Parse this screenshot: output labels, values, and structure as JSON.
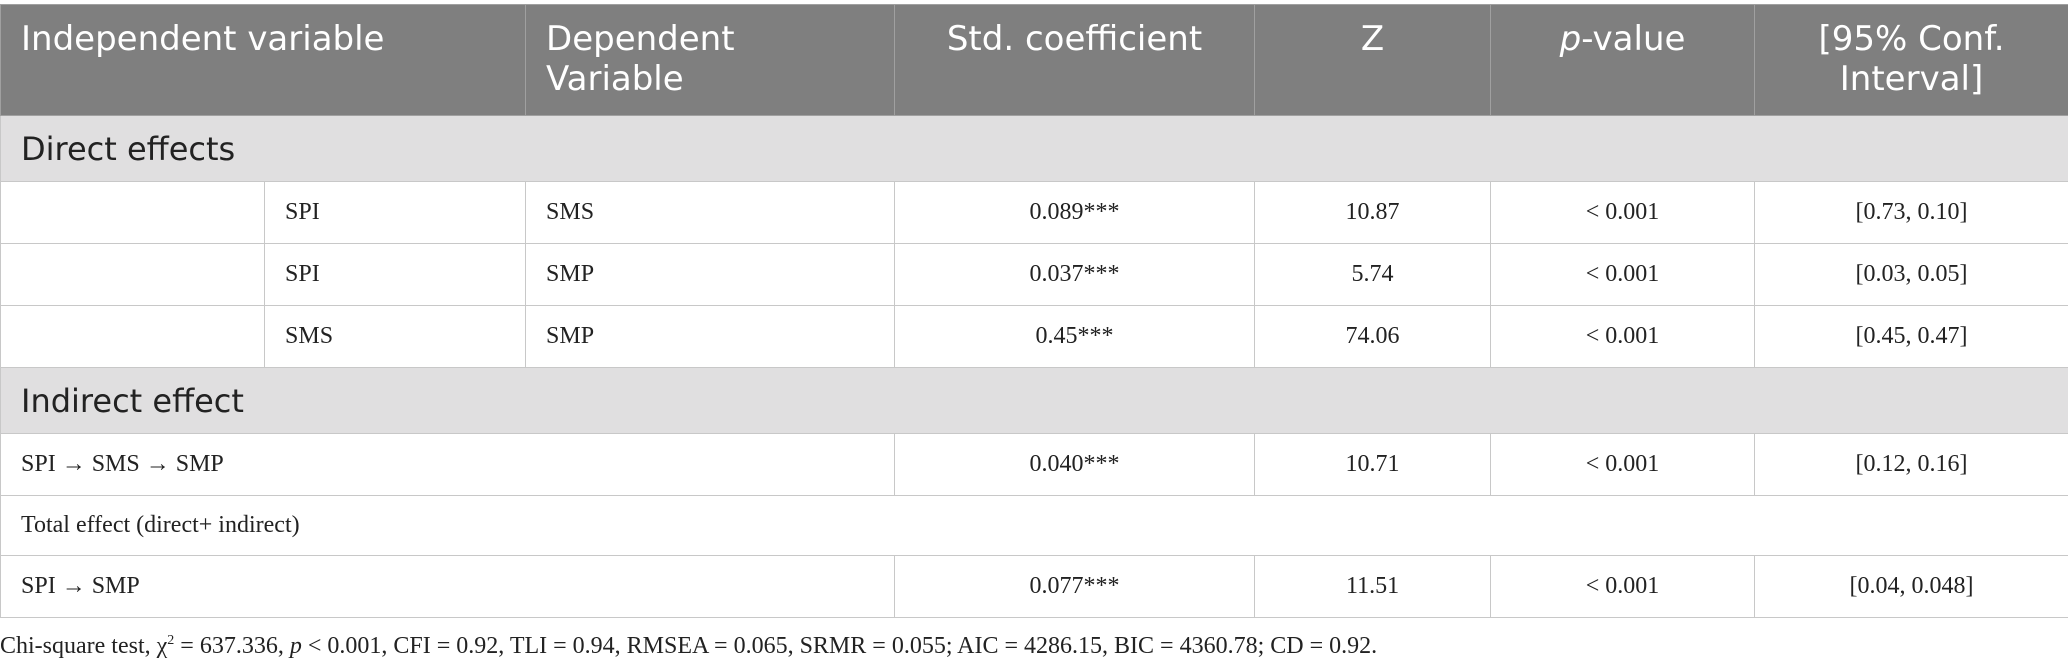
{
  "table": {
    "header": [
      "Independent variable",
      "Dependent Variable",
      "Std. coefficient",
      "Z",
      {
        "italic": "p",
        "text": "-value"
      },
      "[95% Conf. Interval]"
    ],
    "sections": [
      {
        "title": "Direct effects",
        "rows": [
          [
            "SPI",
            "SMS",
            "0.089***",
            "10.87",
            "< 0.001",
            "[0.73, 0.10]"
          ],
          [
            "SPI",
            "SMP",
            "0.037***",
            "5.74",
            "< 0.001",
            "[0.03, 0.05]"
          ],
          [
            "SMS",
            "SMP",
            "0.45***",
            "74.06",
            "< 0.001",
            "[0.45, 0.47]"
          ]
        ]
      },
      {
        "title": "Indirect effect",
        "rows": [
          [
            "SPI → SMS → SMP",
            "0.040***",
            "10.71",
            "< 0.001",
            "[0.12, 0.16]"
          ]
        ]
      }
    ],
    "total_label": "Total effect (direct+ indirect)",
    "total_row": [
      "SPI → SMP",
      "0.077***",
      "11.51",
      "< 0.001",
      "[0.04, 0.048]"
    ]
  },
  "footnote": [
    {
      "text": "Chi-square test, χ"
    },
    {
      "sup": "2"
    },
    {
      "text": " = 637.336, "
    },
    {
      "italic": "p"
    },
    {
      "text": " < 0.001, CFI = 0.92, TLI = 0.94, RMSEA = 0.065, SRMR = 0.055; AIC = 4286.15, BIC = 4360.78; CD = 0.92."
    }
  ]
}
